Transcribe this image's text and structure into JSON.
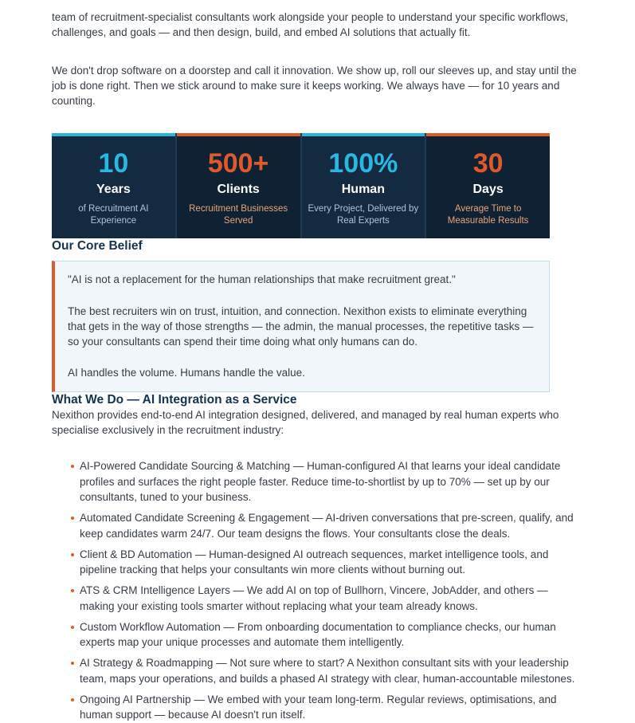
{
  "intro": {
    "paragraph1": "team of recruitment-specialist consultants work alongside your people to understand your specific workflows, challenges, and goals — and then design, build, and embed AI solutions that actually fit.",
    "paragraph2": "We don't drop software on a doorstep and call it innovation. We show up, roll our sleeves up, and stay until the job is done right. Then we stick around to make sure it keeps working. We always have — for 10 years and counting."
  },
  "stats": {
    "colors": {
      "cyan_accent": "#29b6dc",
      "orange_accent": "#e0592b",
      "cyan_cell_bg": "#132a40",
      "orange_cell_bg": "#0f2234",
      "label": "#ffffff",
      "cyan_sub": "#a9c6e0",
      "orange_sub": "#e9a479"
    },
    "items": [
      {
        "value": "10",
        "label": "Years",
        "sub": "of Recruitment AI Experience",
        "accent": "cyan"
      },
      {
        "value": "500+",
        "label": "Clients",
        "sub": "Recruitment Businesses Served",
        "accent": "orange"
      },
      {
        "value": "100%",
        "label": "Human",
        "sub": "Every Project, Delivered by Real Experts",
        "accent": "cyan"
      },
      {
        "value": "30",
        "label": "Days",
        "sub": "Average Time to Measurable Results",
        "accent": "orange"
      }
    ]
  },
  "core_belief": {
    "heading": "Our Core Belief",
    "quote": "\"AI is not a replacement for the human relationships that make recruitment great.\"",
    "body": "The best recruiters win on trust, intuition, and connection. Nexithon exists to eliminate everything that gets in the way of those strengths — the admin, the manual processes, the repetitive tasks — so your consultants can spend their time doing what only humans can do.",
    "tagline": "AI handles the volume. Humans handle the value."
  },
  "what_we_do": {
    "heading": "What We Do — AI Integration as a Service",
    "intro": "Nexithon provides end-to-end AI integration designed, delivered, and managed by real human experts who specialise exclusively in the recruitment industry:",
    "bullets": [
      "AI-Powered Candidate Sourcing & Matching — Human-configured AI that learns your ideal candidate profiles and surfaces the right people faster. Reduce time-to-shortlist by up to 70% — set up by our consultants, tuned to your business.",
      "Automated Candidate Screening & Engagement — AI-driven conversations that pre-screen, qualify, and keep candidates warm 24/7. Our team designs the flows. Your consultants close the deals.",
      "Client & BD Automation — Human-designed AI outreach sequences, market intelligence tools, and pipeline tracking that helps your consultants win more clients without burning out.",
      "ATS & CRM Intelligence Layers — We add AI on top of Bullhorn, Vincere, JobAdder, and others — making your existing tools smarter without replacing what your team already knows.",
      "Custom Workflow Automation — From onboarding documentation to compliance checks, our human experts map your unique processes and automate them intelligently.",
      "AI Strategy & Roadmapping — Not sure where to start? A Nexithon consultant sits with your leadership team, maps your operations, and builds a phased AI strategy with clear, human-accountable milestones.",
      "Ongoing AI Partnership — We embed with your team long-term. Regular reviews, optimisations, and human support — because AI doesn't run itself."
    ]
  }
}
